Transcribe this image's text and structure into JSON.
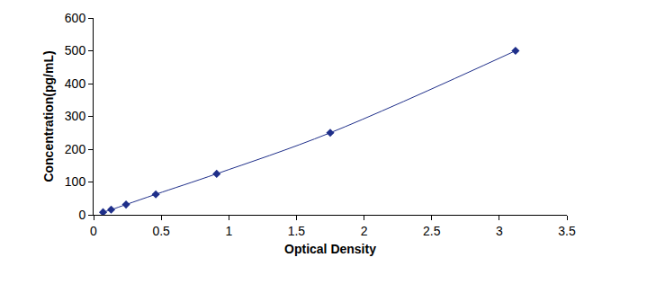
{
  "chart_data": {
    "type": "line",
    "x_label": "Optical Density",
    "y_label": "Concentration(pg/mL)",
    "x": [
      0.07,
      0.13,
      0.24,
      0.46,
      0.91,
      1.75,
      3.12
    ],
    "values": [
      7.8,
      15.6,
      31.2,
      62.5,
      125,
      250,
      500
    ],
    "color": "#1f2f8a",
    "marker": "diamond",
    "line_style": "solid",
    "xlim": [
      0,
      3.5
    ],
    "xticks": [
      0,
      0.5,
      1,
      1.5,
      2,
      2.5,
      3,
      3.5
    ],
    "ylim": [
      0,
      600
    ],
    "yticks": [
      0,
      100,
      200,
      300,
      400,
      500,
      600
    ],
    "grid": false
  }
}
